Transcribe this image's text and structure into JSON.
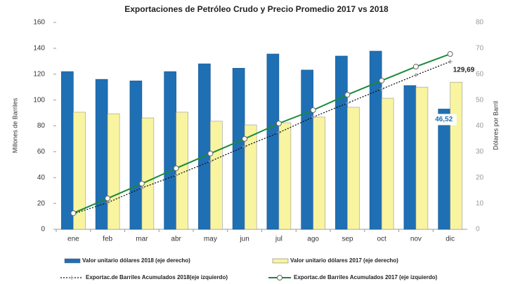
{
  "chart_data": {
    "type": "bar_line",
    "title": "Exportaciones de Petróleo Crudo y Precio Promedio 2017 vs 2018",
    "y_label": "Millones de Barriles",
    "y2_label": "Dólares por Barril",
    "categories": [
      "ene",
      "feb",
      "mar",
      "abr",
      "may",
      "jun",
      "jul",
      "ago",
      "sep",
      "oct",
      "nov",
      "dic"
    ],
    "ylim": [
      0,
      160
    ],
    "yticks": [
      0,
      20,
      40,
      60,
      80,
      100,
      120,
      140,
      160
    ],
    "y2lim": [
      0,
      80
    ],
    "y2ticks": [
      0,
      10,
      20,
      30,
      40,
      50,
      60,
      70,
      80
    ],
    "series": [
      {
        "name": "Valor unitario dólares 2018 (eje derecho)",
        "kind": "bar",
        "axis": "y2",
        "color": "#1f6fb4",
        "values": [
          61.0,
          58.0,
          57.4,
          61.0,
          64.0,
          62.3,
          67.8,
          61.6,
          67.0,
          68.9,
          55.6,
          46.52
        ],
        "value_labels": [
          null,
          null,
          null,
          null,
          null,
          null,
          null,
          null,
          null,
          null,
          null,
          "46,52"
        ]
      },
      {
        "name": "Valor unitario dólares 2017 (eje derecho)",
        "kind": "bar",
        "axis": "y2",
        "color": "#f8f4a0",
        "values": [
          45.3,
          44.7,
          43.1,
          45.3,
          41.8,
          40.4,
          41.2,
          43.4,
          47.2,
          50.7,
          55.0,
          56.9
        ]
      },
      {
        "name": "Exportac.de Barriles Acumulados 2018(eje izquierdo)",
        "kind": "dotted",
        "axis": "y",
        "color": "#111111",
        "values": [
          11.9,
          20.6,
          32.0,
          41.8,
          52.6,
          64.0,
          74.8,
          86.8,
          97.6,
          108.5,
          119.3,
          129.69
        ],
        "value_labels": [
          null,
          null,
          null,
          null,
          null,
          null,
          null,
          null,
          null,
          null,
          null,
          "129,69"
        ]
      },
      {
        "name": "Exportac.de Barriles Acumulados 2017 (eje izquierdo)",
        "kind": "line",
        "axis": "y",
        "color": "#1a8a3a",
        "values": [
          12.5,
          23.9,
          35.3,
          47.2,
          58.6,
          70.0,
          81.9,
          92.2,
          104.1,
          115.0,
          125.8,
          135.6
        ]
      }
    ]
  }
}
